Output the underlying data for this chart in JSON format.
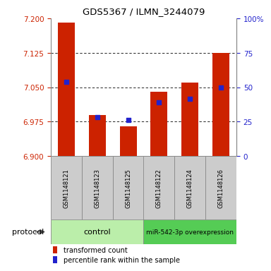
{
  "title": "GDS5367 / ILMN_3244079",
  "samples": [
    "GSM1148121",
    "GSM1148123",
    "GSM1148125",
    "GSM1148122",
    "GSM1148124",
    "GSM1148126"
  ],
  "bar_values": [
    7.19,
    6.99,
    6.965,
    7.04,
    7.06,
    7.125
  ],
  "blue_values": [
    7.062,
    6.984,
    6.978,
    7.017,
    7.025,
    7.05
  ],
  "baseline": 6.9,
  "ylim": [
    6.9,
    7.2
  ],
  "yticks_left": [
    6.9,
    6.975,
    7.05,
    7.125,
    7.2
  ],
  "yticks_right": [
    0,
    25,
    50,
    75,
    100
  ],
  "yticks_right_labels": [
    "0",
    "25",
    "50",
    "75",
    "100%"
  ],
  "grid_values": [
    6.975,
    7.05,
    7.125
  ],
  "bar_color": "#cc2200",
  "blue_color": "#2222cc",
  "group1_label": "control",
  "group1_color": "#bbeeaa",
  "group2_label": "miR-542-3p overexpression",
  "group2_color": "#55cc55",
  "protocol_label": "protocol",
  "legend_red": "transformed count",
  "legend_blue": "percentile rank within the sample",
  "bar_width": 0.55,
  "blue_marker_size": 25
}
